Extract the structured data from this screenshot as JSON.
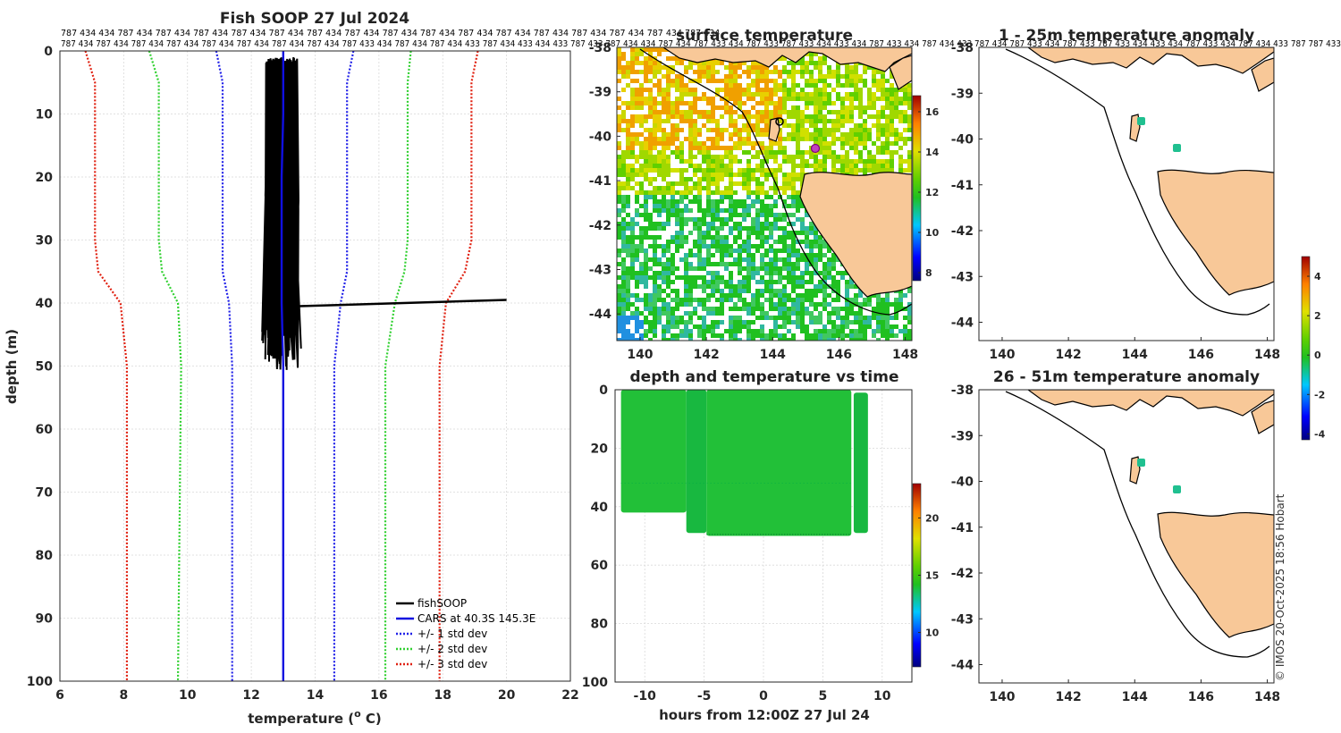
{
  "header": {
    "ids_row1": "787 434 434 787 434 787 434 787 434 787 434 787 434 787 434 787 434 787 434 787 434 787 434 787 434 787 434 787 434 787 434 787 434 787 434",
    "ids_row2": "787 434 787 434 787 434 787 434 787 434 787 434 787 434 787 434 787 433 434 787 434 787 434 433 787 434 433 434 433 787 433 787 434 434 787 434 787 433 434 787 433 787 433 434 433 434 787 433 434 787 434 433 787 434 787 433 434 787 433 787 433 434 433 434 787 433 434 787 434 433 787 787 433"
  },
  "colors": {
    "fish": "#000000",
    "cars": "#1010e0",
    "std1": "#2020e8",
    "std2": "#30d030",
    "std3": "#e02010",
    "land": "#f8c898",
    "sst_points": "#20c020"
  },
  "icons": [
    "profile-line",
    "map-contour",
    "colorbar"
  ],
  "chart_data": [
    {
      "type": "line",
      "title": "Fish SOOP 27 Jul 2024",
      "xlabel": "temperature (O C)",
      "xlabel_main": "temperature (",
      "xlabel_sup": "o",
      "xlabel_tail": " C)",
      "ylabel": "depth (m)",
      "xlim": [
        6,
        22
      ],
      "ylim": [
        0,
        100
      ],
      "y_inverted": true,
      "xticks": [
        "6",
        "8",
        "10",
        "12",
        "14",
        "16",
        "18",
        "20",
        "22"
      ],
      "yticks": [
        "0",
        "10",
        "20",
        "30",
        "40",
        "50",
        "60",
        "70",
        "80",
        "90",
        "100"
      ],
      "series": [
        {
          "name": "fishSOOP",
          "style": "solid",
          "x_range": [
            12.4,
            13.5
          ],
          "depth_range": [
            1,
            51
          ],
          "spike": {
            "depth": [
              40.5,
              39.5
            ],
            "x": [
              13.5,
              20.0
            ]
          }
        },
        {
          "name": "CARS at 40.3S 145.3E",
          "style": "solid",
          "x": [
            13.0,
            13.0,
            12.95,
            12.95,
            12.95,
            13.0,
            13.0
          ],
          "depth": [
            0,
            10,
            20,
            30,
            40,
            50,
            100
          ]
        },
        {
          "name": "+/- 1 std dev",
          "style": "dotted",
          "lower": {
            "x": [
              10.9,
              11.1,
              11.1,
              11.1,
              11.3,
              11.4,
              11.4
            ],
            "depth": [
              0,
              5,
              30,
              35,
              40,
              50,
              100
            ]
          },
          "upper": {
            "x": [
              15.2,
              15.0,
              15.0,
              15.0,
              14.8,
              14.6,
              14.6
            ],
            "depth": [
              0,
              5,
              30,
              35,
              40,
              50,
              100
            ]
          }
        },
        {
          "name": "+/- 2 std dev",
          "style": "dotted",
          "lower": {
            "x": [
              8.8,
              9.1,
              9.1,
              9.2,
              9.7,
              9.8,
              9.7
            ],
            "depth": [
              0,
              5,
              30,
              35,
              40,
              50,
              100
            ]
          },
          "upper": {
            "x": [
              17.0,
              16.9,
              16.9,
              16.8,
              16.5,
              16.2,
              16.2
            ],
            "depth": [
              0,
              5,
              30,
              35,
              40,
              50,
              100
            ]
          }
        },
        {
          "name": "+/- 3 std dev",
          "style": "dotted",
          "lower": {
            "x": [
              6.8,
              7.1,
              7.1,
              7.2,
              7.9,
              8.1,
              8.1
            ],
            "depth": [
              0,
              5,
              30,
              35,
              40,
              50,
              100
            ]
          },
          "upper": {
            "x": [
              19.1,
              18.9,
              18.9,
              18.7,
              18.1,
              17.9,
              17.9
            ],
            "depth": [
              0,
              5,
              30,
              35,
              40,
              50,
              100
            ]
          }
        }
      ],
      "legend_position": "bottom-right"
    },
    {
      "type": "heatmap",
      "title": "surface temperature",
      "xlim": [
        139.3,
        148.2
      ],
      "ylim": [
        -44.6,
        -38
      ],
      "xticks": [
        "140",
        "142",
        "144",
        "146",
        "148"
      ],
      "yticks": [
        "-38",
        "-39",
        "-40",
        "-41",
        "-42",
        "-43",
        "-44"
      ],
      "colorbar": {
        "range": [
          7.6,
          16.8
        ],
        "ticks": [
          "8",
          "10",
          "12",
          "14",
          "16"
        ]
      }
    },
    {
      "type": "scatter",
      "title": "depth and temperature vs time",
      "xlabel": "hours from 12:00Z 27 Jul 24",
      "xlim": [
        -12.5,
        12.5
      ],
      "ylim": [
        0,
        100
      ],
      "y_inverted": true,
      "xticks": [
        "-10",
        "-5",
        "0",
        "5",
        "10"
      ],
      "yticks": [
        "0",
        "20",
        "40",
        "60",
        "80",
        "100"
      ],
      "colorbar": {
        "range": [
          7,
          23
        ],
        "ticks": [
          "10",
          "15",
          "20"
        ]
      },
      "blocks": [
        {
          "t": [
            -12,
            -6.5
          ],
          "depth": [
            0,
            42
          ]
        },
        {
          "t": [
            -6.5,
            -4.8
          ],
          "depth": [
            0,
            49
          ]
        },
        {
          "t": [
            -4.8,
            7.4
          ],
          "depth": [
            0,
            50
          ]
        },
        {
          "t": [
            7.6,
            8.8
          ],
          "depth": [
            1,
            49
          ]
        }
      ]
    },
    {
      "type": "heatmap",
      "title": "1 - 25m temperature anomaly",
      "xlim": [
        139.3,
        148.2
      ],
      "ylim": [
        -44.4,
        -38
      ],
      "xticks": [
        "140",
        "142",
        "144",
        "146",
        "148"
      ],
      "yticks": [
        "-38",
        "-39",
        "-40",
        "-41",
        "-42",
        "-43",
        "-44"
      ],
      "colorbar": {
        "range": [
          -4.3,
          5.0
        ],
        "ticks": [
          "-4",
          "-2",
          "0",
          "2",
          "4"
        ]
      },
      "points": [
        {
          "lon": 144.3,
          "lat": -39.7
        },
        {
          "lon": 145.3,
          "lat": -40.3
        }
      ]
    },
    {
      "type": "heatmap",
      "title": "26 - 51m temperature anomaly",
      "xlim": [
        139.3,
        148.2
      ],
      "ylim": [
        -44.4,
        -38
      ],
      "xticks": [
        "140",
        "142",
        "144",
        "146",
        "148"
      ],
      "yticks": [
        "-38",
        "-39",
        "-40",
        "-41",
        "-42",
        "-43",
        "-44"
      ],
      "points": [
        {
          "lon": 144.3,
          "lat": -39.7
        },
        {
          "lon": 145.3,
          "lat": -40.3
        }
      ]
    }
  ],
  "watermark": "© IMOS 20-Oct-2025 18:56 Hobart"
}
